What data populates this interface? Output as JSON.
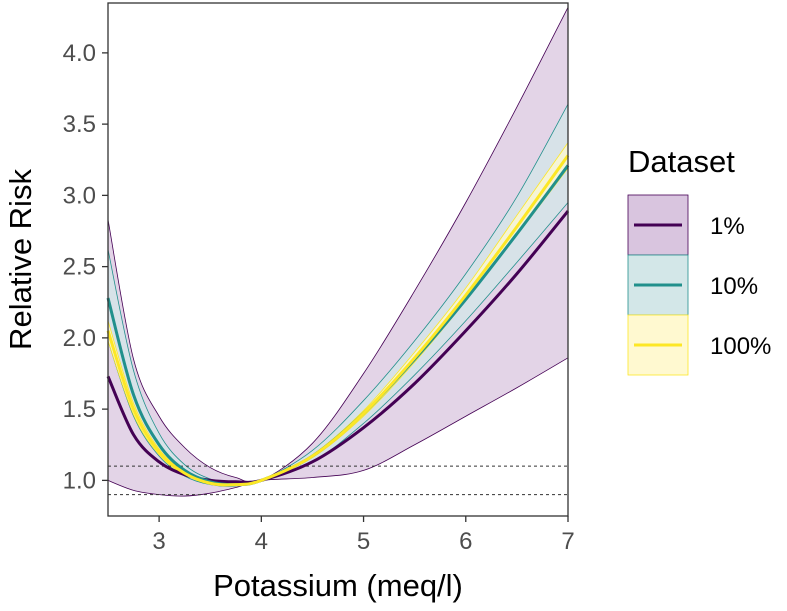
{
  "chart_data": {
    "type": "line",
    "xlabel": "Potassium (meq/l)",
    "ylabel": "Relative Risk",
    "xlim": [
      2.5,
      7.0
    ],
    "ylim": [
      0.75,
      4.35
    ],
    "x_ticks": [
      "3",
      "4",
      "5",
      "6",
      "7"
    ],
    "y_ticks": [
      "1.0",
      "1.5",
      "2.0",
      "2.5",
      "3.0",
      "3.5",
      "4.0"
    ],
    "reference_lines": [
      0.9,
      1.1
    ],
    "grid": false,
    "legend": {
      "title": "Dataset",
      "position": "right",
      "entries": [
        "1%",
        "10%",
        "100%"
      ]
    },
    "x": [
      2.5,
      2.75,
      3.0,
      3.25,
      3.5,
      3.75,
      4.0,
      4.5,
      5.0,
      5.5,
      6.0,
      6.5,
      7.0
    ],
    "series": [
      {
        "name": "1%",
        "color": "#440154",
        "fill": "#d9c5df",
        "values": [
          1.73,
          1.32,
          1.13,
          1.04,
          1.0,
          0.99,
          1.0,
          1.13,
          1.37,
          1.68,
          2.05,
          2.45,
          2.89
        ],
        "lower": [
          1.0,
          0.93,
          0.9,
          0.89,
          0.91,
          0.95,
          1.0,
          1.02,
          1.07,
          1.25,
          1.45,
          1.65,
          1.86
        ],
        "upper": [
          2.83,
          1.85,
          1.45,
          1.23,
          1.09,
          1.02,
          1.0,
          1.26,
          1.75,
          2.33,
          2.95,
          3.62,
          4.32
        ]
      },
      {
        "name": "10%",
        "color": "#21908c",
        "fill": "#d3e7e8",
        "values": [
          2.28,
          1.6,
          1.25,
          1.07,
          0.99,
          0.97,
          1.0,
          1.17,
          1.47,
          1.85,
          2.27,
          2.73,
          3.21
        ],
        "lower": [
          1.98,
          1.45,
          1.17,
          1.03,
          0.97,
          0.96,
          1.0,
          1.13,
          1.4,
          1.74,
          2.12,
          2.53,
          2.95
        ],
        "upper": [
          2.62,
          1.77,
          1.33,
          1.11,
          1.01,
          0.98,
          1.0,
          1.21,
          1.56,
          1.98,
          2.45,
          2.99,
          3.64
        ]
      },
      {
        "name": "100%",
        "color": "#fde725",
        "fill": "#fff9d0",
        "values": [
          2.05,
          1.5,
          1.2,
          1.05,
          0.98,
          0.97,
          1.0,
          1.17,
          1.47,
          1.86,
          2.3,
          2.78,
          3.28
        ],
        "lower": [
          1.98,
          1.46,
          1.18,
          1.04,
          0.98,
          0.97,
          1.0,
          1.16,
          1.45,
          1.83,
          2.26,
          2.72,
          3.19
        ],
        "upper": [
          2.12,
          1.54,
          1.22,
          1.06,
          0.99,
          0.98,
          1.0,
          1.18,
          1.49,
          1.9,
          2.35,
          2.86,
          3.37
        ]
      }
    ]
  }
}
